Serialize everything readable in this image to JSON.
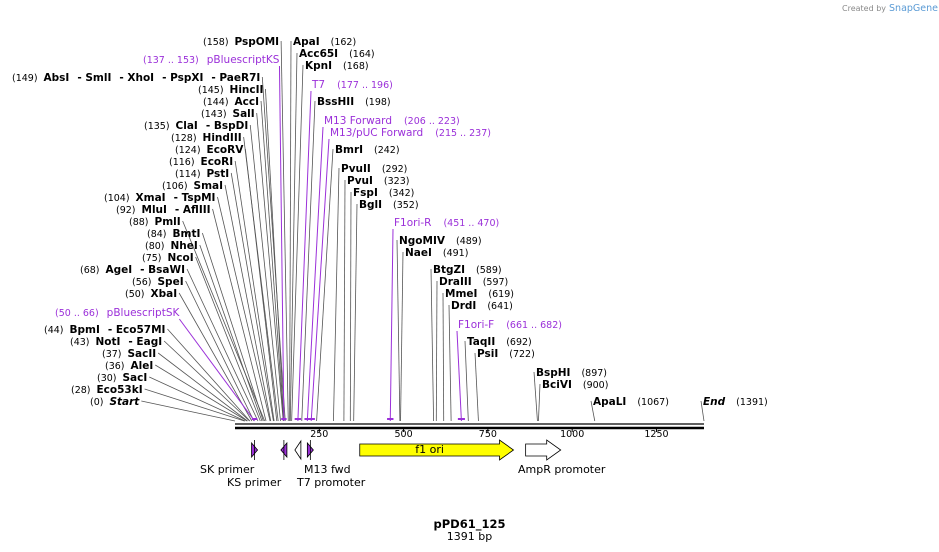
{
  "credit": {
    "prefix": "Created by",
    "brand": "SnapGene"
  },
  "plasmid": {
    "name": "pPD61_125",
    "length_label": "1391 bp",
    "length": 1391
  },
  "colors": {
    "primer": "#9b30d9",
    "feature_f1ori": "#ffff00",
    "line": "#606060"
  },
  "sites": [
    {
      "pos": "(158)",
      "bp": 158,
      "names": [
        "PspOMI"
      ]
    },
    {
      "pos": "(162)",
      "bp": 162,
      "names": [
        "ApaI"
      ],
      "after": true
    },
    {
      "pos": "(164)",
      "bp": 164,
      "names": [
        "Acc65I"
      ],
      "after": true
    },
    {
      "pos": "(168)",
      "bp": 168,
      "names": [
        "KpnI"
      ],
      "after": true
    },
    {
      "pos": "(149)",
      "bp": 149,
      "names": [
        "AbsI",
        "- SmlI",
        "- XhoI",
        "- PspXI",
        "- PaeR7I"
      ]
    },
    {
      "pos": "(145)",
      "bp": 145,
      "names": [
        "HincII"
      ]
    },
    {
      "pos": "(144)",
      "bp": 144,
      "names": [
        "AccI"
      ]
    },
    {
      "pos": "(143)",
      "bp": 143,
      "names": [
        "SalI"
      ]
    },
    {
      "pos": "(198)",
      "bp": 198,
      "names": [
        "BssHII"
      ],
      "after": true
    },
    {
      "pos": "(135)",
      "bp": 135,
      "names": [
        "ClaI",
        "- BspDI"
      ]
    },
    {
      "pos": "(128)",
      "bp": 128,
      "names": [
        "HindIII"
      ]
    },
    {
      "pos": "(124)",
      "bp": 124,
      "names": [
        "EcoRV"
      ]
    },
    {
      "pos": "(242)",
      "bp": 242,
      "names": [
        "BmrI"
      ],
      "after": true
    },
    {
      "pos": "(116)",
      "bp": 116,
      "names": [
        "EcoRI"
      ]
    },
    {
      "pos": "(114)",
      "bp": 114,
      "names": [
        "PstI"
      ]
    },
    {
      "pos": "(292)",
      "bp": 292,
      "names": [
        "PvuII"
      ],
      "after": true
    },
    {
      "pos": "(106)",
      "bp": 106,
      "names": [
        "SmaI"
      ]
    },
    {
      "pos": "(323)",
      "bp": 323,
      "names": [
        "PvuI"
      ],
      "after": true
    },
    {
      "pos": "(104)",
      "bp": 104,
      "names": [
        "XmaI",
        "- TspMI"
      ]
    },
    {
      "pos": "(342)",
      "bp": 342,
      "names": [
        "FspI"
      ],
      "after": true
    },
    {
      "pos": "(92)",
      "bp": 92,
      "names": [
        "MluI",
        "- AflIII"
      ]
    },
    {
      "pos": "(352)",
      "bp": 352,
      "names": [
        "BglI"
      ],
      "after": true
    },
    {
      "pos": "(88)",
      "bp": 88,
      "names": [
        "PmlI"
      ]
    },
    {
      "pos": "(84)",
      "bp": 84,
      "names": [
        "BmtI"
      ]
    },
    {
      "pos": "(489)",
      "bp": 489,
      "names": [
        "NgoMIV"
      ],
      "after": true
    },
    {
      "pos": "(80)",
      "bp": 80,
      "names": [
        "NheI"
      ]
    },
    {
      "pos": "(491)",
      "bp": 491,
      "names": [
        "NaeI"
      ],
      "after": true
    },
    {
      "pos": "(75)",
      "bp": 75,
      "names": [
        "NcoI"
      ]
    },
    {
      "pos": "(68)",
      "bp": 68,
      "names": [
        "AgeI",
        "- BsaWI"
      ]
    },
    {
      "pos": "(589)",
      "bp": 589,
      "names": [
        "BtgZI"
      ],
      "after": true
    },
    {
      "pos": "(56)",
      "bp": 56,
      "names": [
        "SpeI"
      ]
    },
    {
      "pos": "(597)",
      "bp": 597,
      "names": [
        "DraIII"
      ],
      "after": true
    },
    {
      "pos": "(50)",
      "bp": 50,
      "names": [
        "XbaI"
      ]
    },
    {
      "pos": "(619)",
      "bp": 619,
      "names": [
        "MmeI"
      ],
      "after": true
    },
    {
      "pos": "(641)",
      "bp": 641,
      "names": [
        "DrdI"
      ],
      "after": true
    },
    {
      "pos": "(44)",
      "bp": 44,
      "names": [
        "BpmI",
        "- Eco57MI"
      ]
    },
    {
      "pos": "(43)",
      "bp": 43,
      "names": [
        "NotI",
        "- EagI"
      ]
    },
    {
      "pos": "(692)",
      "bp": 692,
      "names": [
        "TaqII"
      ],
      "after": true
    },
    {
      "pos": "(37)",
      "bp": 37,
      "names": [
        "SacII"
      ]
    },
    {
      "pos": "(722)",
      "bp": 722,
      "names": [
        "PsiI"
      ],
      "after": true
    },
    {
      "pos": "(36)",
      "bp": 36,
      "names": [
        "AleI"
      ]
    },
    {
      "pos": "(897)",
      "bp": 897,
      "names": [
        "BspHI"
      ],
      "after": true
    },
    {
      "pos": "(30)",
      "bp": 30,
      "names": [
        "SacI"
      ]
    },
    {
      "pos": "(900)",
      "bp": 900,
      "names": [
        "BciVI"
      ],
      "after": true
    },
    {
      "pos": "(28)",
      "bp": 28,
      "names": [
        "Eco53kI"
      ]
    },
    {
      "pos": "(0)",
      "bp": 0,
      "names": [
        "Start"
      ],
      "italic": true
    },
    {
      "pos": "(1067)",
      "bp": 1067,
      "names": [
        "ApaLI"
      ],
      "after": true
    },
    {
      "pos": "(1391)",
      "bp": 1391,
      "names": [
        "End"
      ],
      "after": true,
      "italic": true
    }
  ],
  "primers": [
    {
      "name": "pBluescriptKS",
      "range": "(137 .. 153)",
      "start": 137,
      "end": 153
    },
    {
      "name": "T7",
      "range": "(177 .. 196)",
      "start": 177,
      "end": 196
    },
    {
      "name": "M13 Forward",
      "range": "(206 .. 223)",
      "start": 206,
      "end": 223
    },
    {
      "name": "M13/pUC Forward",
      "range": "(215 .. 237)",
      "start": 215,
      "end": 237
    },
    {
      "name": "F1ori-R",
      "range": "(451 .. 470)",
      "start": 451,
      "end": 470
    },
    {
      "name": "F1ori-F",
      "range": "(661 .. 682)",
      "start": 661,
      "end": 682
    },
    {
      "name": "pBluescriptSK",
      "range": "(50 .. 66)",
      "start": 50,
      "end": 66
    }
  ],
  "ruler": {
    "ticks": [
      {
        "label": "250",
        "bp": 250
      },
      {
        "label": "500",
        "bp": 500
      },
      {
        "label": "750",
        "bp": 750
      },
      {
        "label": "1000",
        "bp": 1000
      },
      {
        "label": "1250",
        "bp": 1250
      }
    ]
  },
  "features": [
    {
      "name": "f1 ori",
      "kind": "f1",
      "start": 370,
      "end": 826
    },
    {
      "name": "AmpR promoter",
      "kind": "promoter",
      "start": 862,
      "end": 966
    },
    {
      "name": "SK primer",
      "kind": "primer-site",
      "start": 50,
      "end": 66
    },
    {
      "name": "KS primer",
      "kind": "primer-site",
      "start": 137,
      "end": 153
    },
    {
      "name": "T7 promoter",
      "kind": "promoter-small",
      "start": 177,
      "end": 196
    },
    {
      "name": "M13 fwd",
      "kind": "primer-site",
      "start": 215,
      "end": 232
    }
  ]
}
